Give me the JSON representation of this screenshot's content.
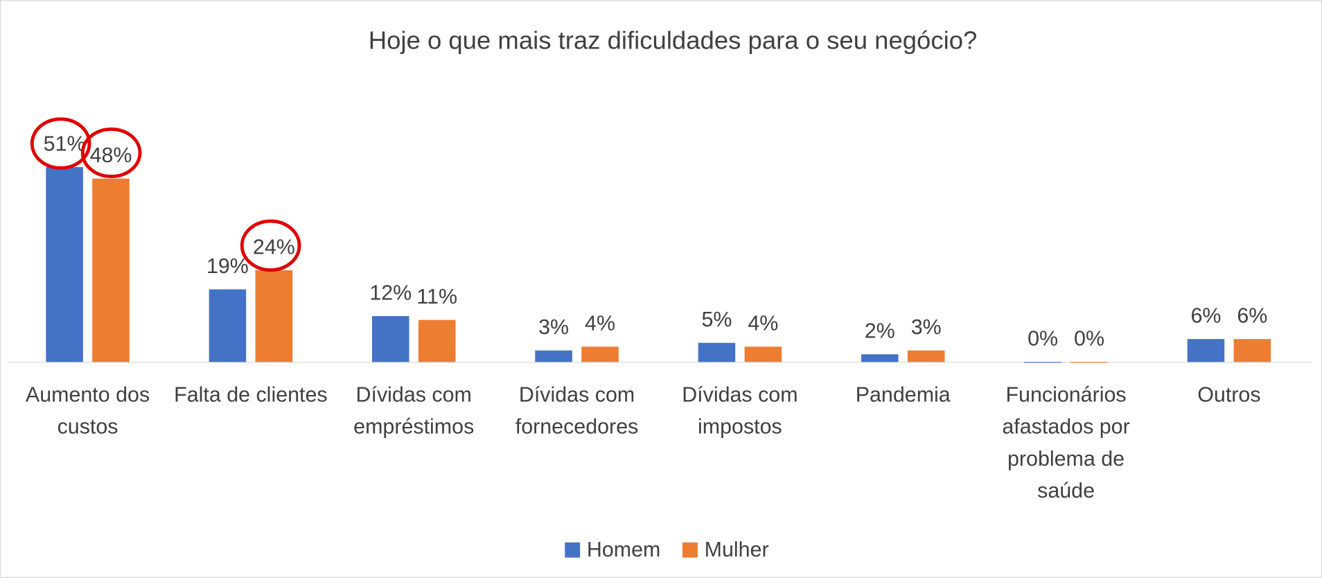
{
  "chart_data": {
    "type": "bar",
    "title": "Hoje o que mais traz dificuldades para o seu negócio?",
    "categories": [
      "Aumento dos custos",
      "Falta de clientes",
      "Dívidas com empréstimos",
      "Dívidas com fornecedores",
      "Dívidas com impostos",
      "Pandemia",
      "Funcionários afastados por problema de saúde",
      "Outros"
    ],
    "series": [
      {
        "name": "Homem",
        "color": "#4472c4",
        "values": [
          51,
          19,
          12,
          3,
          5,
          2,
          0,
          6
        ],
        "value_labels": [
          "51%",
          "19%",
          "12%",
          "3%",
          "5%",
          "2%",
          "0%",
          "6%"
        ]
      },
      {
        "name": "Mulher",
        "color": "#ed7d31",
        "values": [
          48,
          24,
          11,
          4,
          4,
          3,
          0,
          6
        ],
        "value_labels": [
          "48%",
          "24%",
          "11%",
          "4%",
          "4%",
          "3%",
          "0%",
          "6%"
        ]
      }
    ],
    "legend": "bottom"
  }
}
